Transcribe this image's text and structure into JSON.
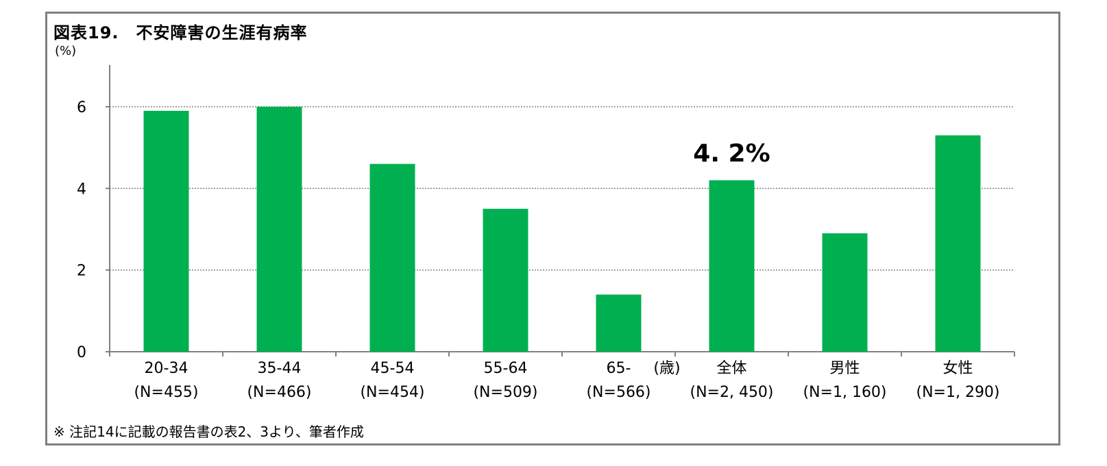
{
  "title": "図表19.　不安障害の生涯有病率",
  "footnote": "※ 注記14に記載の報告書の表2、3より、筆者作成",
  "colors": {
    "bar": "#00b050",
    "grid": "#808080",
    "axis": "#808080",
    "frame": "#7f7f7f"
  },
  "chart_data": {
    "type": "bar",
    "ylabel": "(%)",
    "ylim": [
      0,
      7
    ],
    "yticks": [
      0,
      2,
      4,
      6
    ],
    "grid": "dotted horizontal",
    "categories": [
      {
        "name": "20-34",
        "n": "(N=455)"
      },
      {
        "name": "35-44",
        "n": "(N=466)"
      },
      {
        "name": "45-54",
        "n": "(N=454)"
      },
      {
        "name": "55-64",
        "n": "(N=509)"
      },
      {
        "name": "65-",
        "n": "(N=566)"
      },
      {
        "name": "全体",
        "n": "(N=2, 450)"
      },
      {
        "name": "男性",
        "n": "(N=1, 160)"
      },
      {
        "name": "女性",
        "n": "(N=1, 290)"
      }
    ],
    "values": [
      5.9,
      6.0,
      4.6,
      3.5,
      1.4,
      4.2,
      2.9,
      5.3
    ],
    "age_unit_label": "(歳)",
    "annotation": {
      "category_index": 5,
      "text": "4. 2%"
    }
  }
}
